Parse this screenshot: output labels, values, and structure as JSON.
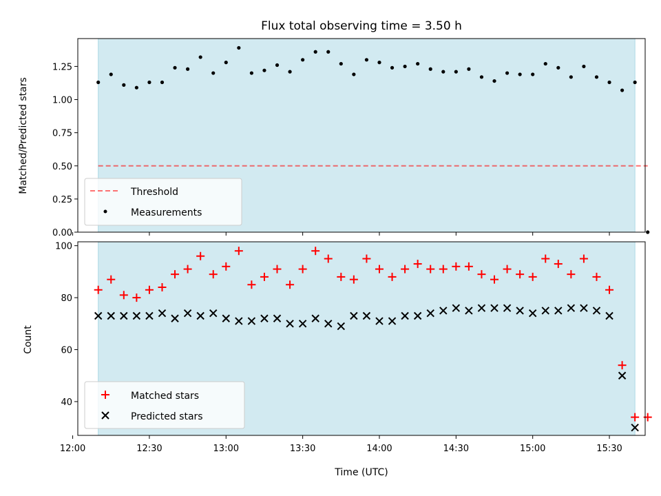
{
  "chart_data": [
    {
      "type": "scatter",
      "title": "Flux total observing time = 3.50 h",
      "ylabel": "Matched/Predicted stars",
      "xlabel": "",
      "xlim": [
        722,
        944
      ],
      "ylim": [
        0,
        1.46
      ],
      "yticks": [
        "0.00",
        "0.25",
        "0.50",
        "0.75",
        "1.00",
        "1.25"
      ],
      "ytick_values": [
        0,
        0.25,
        0.5,
        0.75,
        1.0,
        1.25
      ],
      "shade_range": [
        730,
        940
      ],
      "shade_color": "#add8e6",
      "threshold": {
        "name": "Threshold",
        "value": 0.5,
        "x_range": [
          730,
          945
        ],
        "color": "#ff0000"
      },
      "series": [
        {
          "name": "Measurements",
          "marker": "dot",
          "color": "#000000",
          "x": [
            730,
            735,
            740,
            745,
            750,
            755,
            760,
            765,
            770,
            775,
            780,
            785,
            790,
            795,
            800,
            805,
            810,
            815,
            820,
            825,
            830,
            835,
            840,
            845,
            850,
            855,
            860,
            865,
            870,
            875,
            880,
            885,
            890,
            895,
            900,
            905,
            910,
            915,
            920,
            925,
            930,
            935,
            940,
            945
          ],
          "y": [
            1.13,
            1.19,
            1.11,
            1.09,
            1.13,
            1.13,
            1.24,
            1.23,
            1.32,
            1.2,
            1.28,
            1.39,
            1.2,
            1.22,
            1.26,
            1.21,
            1.3,
            1.36,
            1.36,
            1.27,
            1.19,
            1.3,
            1.28,
            1.24,
            1.25,
            1.27,
            1.23,
            1.21,
            1.21,
            1.23,
            1.17,
            1.14,
            1.2,
            1.19,
            1.19,
            1.27,
            1.24,
            1.17,
            1.25,
            1.17,
            1.13,
            1.07,
            1.13,
            0.0
          ]
        }
      ]
    },
    {
      "type": "scatter",
      "title": "",
      "ylabel": "Count",
      "xlabel": "Time (UTC)",
      "xlim": [
        722,
        944
      ],
      "ylim": [
        27,
        101.5
      ],
      "yticks": [
        "40",
        "60",
        "80",
        "100"
      ],
      "ytick_values": [
        40,
        60,
        80,
        100
      ],
      "xticks": [
        "12:00",
        "12:30",
        "13:00",
        "13:30",
        "14:00",
        "14:30",
        "15:00",
        "15:30"
      ],
      "xtick_values": [
        720,
        750,
        780,
        810,
        840,
        870,
        900,
        930
      ],
      "shade_range": [
        730,
        940
      ],
      "shade_color": "#add8e6",
      "series": [
        {
          "name": "Matched stars",
          "marker": "plus",
          "color": "#ff0000",
          "x": [
            730,
            735,
            740,
            745,
            750,
            755,
            760,
            765,
            770,
            775,
            780,
            785,
            790,
            795,
            800,
            805,
            810,
            815,
            820,
            825,
            830,
            835,
            840,
            845,
            850,
            855,
            860,
            865,
            870,
            875,
            880,
            885,
            890,
            895,
            900,
            905,
            910,
            915,
            920,
            925,
            930,
            935,
            940,
            945
          ],
          "y": [
            83,
            87,
            81,
            80,
            83,
            84,
            89,
            91,
            96,
            89,
            92,
            98,
            85,
            88,
            91,
            85,
            91,
            98,
            95,
            88,
            87,
            95,
            91,
            88,
            91,
            93,
            91,
            91,
            92,
            92,
            89,
            87,
            91,
            89,
            88,
            95,
            93,
            89,
            95,
            88,
            83,
            54,
            34,
            34
          ]
        },
        {
          "name": "Predicted stars",
          "marker": "x",
          "color": "#000000",
          "x": [
            730,
            735,
            740,
            745,
            750,
            755,
            760,
            765,
            770,
            775,
            780,
            785,
            790,
            795,
            800,
            805,
            810,
            815,
            820,
            825,
            830,
            835,
            840,
            845,
            850,
            855,
            860,
            865,
            870,
            875,
            880,
            885,
            890,
            895,
            900,
            905,
            910,
            915,
            920,
            925,
            930,
            935,
            940
          ],
          "y": [
            73,
            73,
            73,
            73,
            73,
            74,
            72,
            74,
            73,
            74,
            72,
            71,
            71,
            72,
            72,
            70,
            70,
            72,
            70,
            69,
            73,
            73,
            71,
            71,
            73,
            73,
            74,
            75,
            76,
            75,
            76,
            76,
            76,
            75,
            74,
            75,
            75,
            76,
            76,
            75,
            73,
            50,
            30
          ]
        }
      ]
    }
  ]
}
